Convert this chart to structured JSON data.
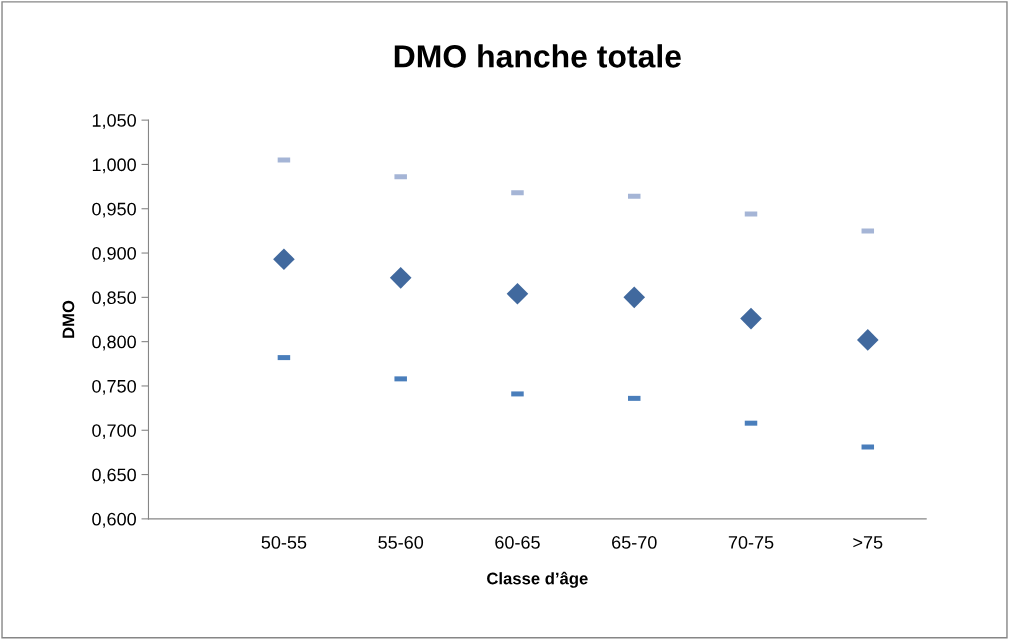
{
  "chart_data": {
    "type": "scatter",
    "title": "DMO hanche totale",
    "xlabel": "Classe d’âge",
    "ylabel": "DMO",
    "categories": [
      "50-55",
      "55-60",
      "60-65",
      "65-70",
      "70-75",
      ">75"
    ],
    "series": [
      {
        "color": "#a5b5d6",
        "marker": "square",
        "values": [
          1.005,
          0.986,
          0.968,
          0.964,
          0.944,
          0.925
        ]
      },
      {
        "color": "#41699e",
        "marker": "diamond",
        "values": [
          0.893,
          0.872,
          0.854,
          0.85,
          0.826,
          0.802
        ]
      },
      {
        "color": "#4a7ebb",
        "marker": "square",
        "values": [
          0.782,
          0.758,
          0.741,
          0.736,
          0.708,
          0.681
        ]
      }
    ],
    "ylim": [
      0.6,
      1.05
    ],
    "yticks": [
      {
        "value": 0.6,
        "label": "0,600"
      },
      {
        "value": 0.65,
        "label": "0,650"
      },
      {
        "value": 0.7,
        "label": "0,700"
      },
      {
        "value": 0.75,
        "label": "0,750"
      },
      {
        "value": 0.8,
        "label": "0,800"
      },
      {
        "value": 0.85,
        "label": "0,850"
      },
      {
        "value": 0.9,
        "label": "0,900"
      },
      {
        "value": 0.95,
        "label": "0,950"
      },
      {
        "value": 1.0,
        "label": "1,000"
      },
      {
        "value": 1.05,
        "label": "1,050"
      }
    ],
    "grid": false,
    "legend": false
  }
}
